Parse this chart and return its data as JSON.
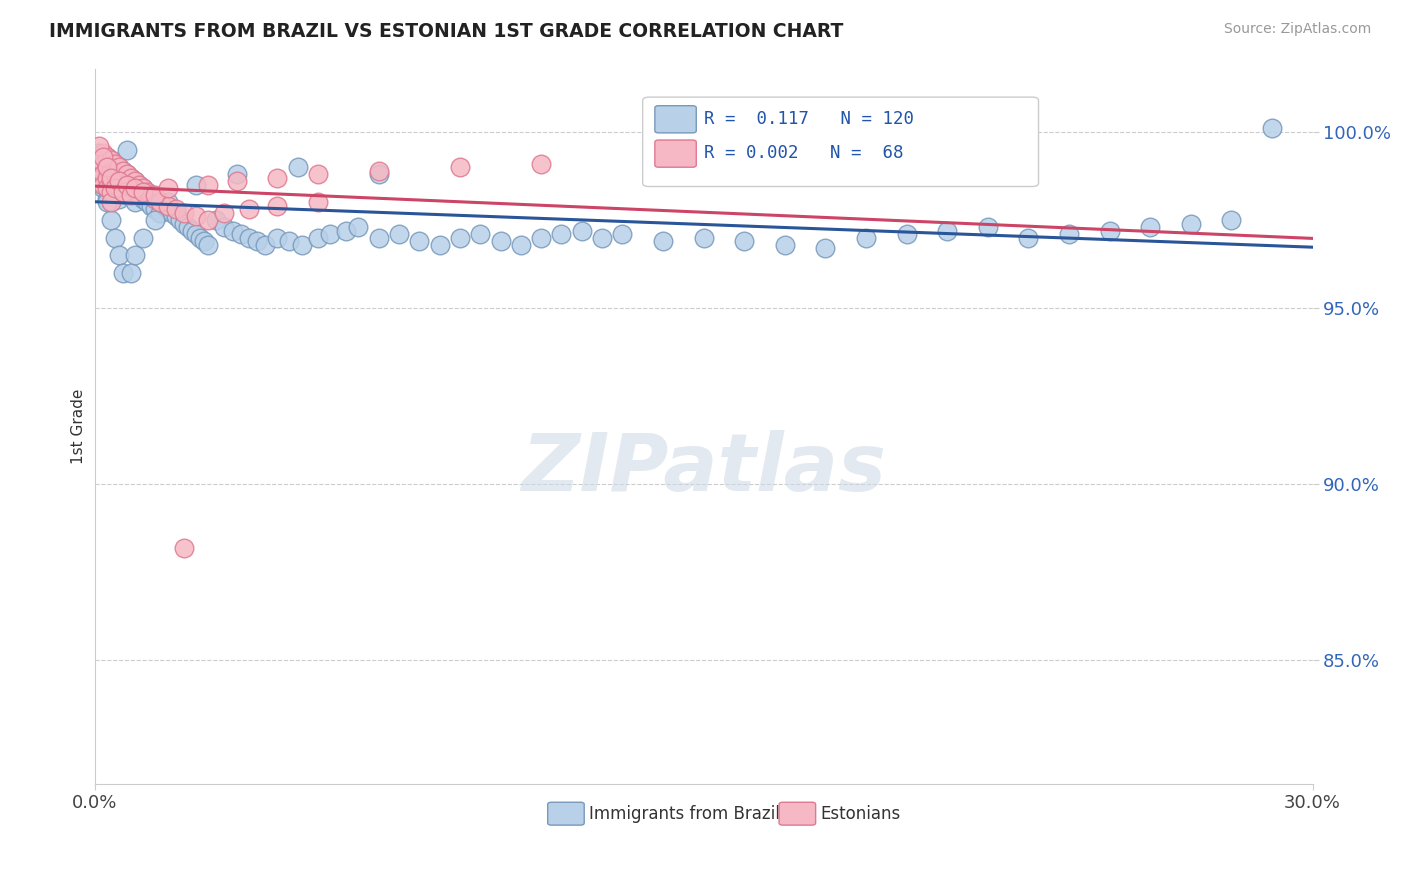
{
  "title": "IMMIGRANTS FROM BRAZIL VS ESTONIAN 1ST GRADE CORRELATION CHART",
  "source_text": "Source: ZipAtlas.com",
  "ylabel": "1st Grade",
  "xlim": [
    0.0,
    0.3
  ],
  "ylim": [
    0.815,
    1.018
  ],
  "xtick_labels": [
    "0.0%",
    "30.0%"
  ],
  "ytick_labels": [
    "85.0%",
    "90.0%",
    "95.0%",
    "100.0%"
  ],
  "ytick_values": [
    0.85,
    0.9,
    0.95,
    1.0
  ],
  "blue_R": 0.117,
  "blue_N": 120,
  "pink_R": 0.002,
  "pink_N": 68,
  "blue_fill": "#b8d0e8",
  "blue_edge": "#7799bb",
  "pink_fill": "#f5b8c4",
  "pink_edge": "#e07890",
  "trend_blue_color": "#2a5599",
  "trend_pink_color": "#cc4466",
  "legend_label_blue": "Immigrants from Brazil",
  "legend_label_pink": "Estonians",
  "blue_scatter_x": [
    0.001,
    0.001,
    0.001,
    0.002,
    0.002,
    0.002,
    0.002,
    0.003,
    0.003,
    0.003,
    0.003,
    0.003,
    0.004,
    0.004,
    0.004,
    0.004,
    0.004,
    0.005,
    0.005,
    0.005,
    0.005,
    0.006,
    0.006,
    0.006,
    0.006,
    0.007,
    0.007,
    0.007,
    0.008,
    0.008,
    0.008,
    0.009,
    0.009,
    0.01,
    0.01,
    0.01,
    0.011,
    0.011,
    0.012,
    0.012,
    0.013,
    0.013,
    0.014,
    0.014,
    0.015,
    0.015,
    0.016,
    0.016,
    0.017,
    0.018,
    0.019,
    0.02,
    0.021,
    0.022,
    0.023,
    0.024,
    0.025,
    0.026,
    0.027,
    0.028,
    0.03,
    0.032,
    0.034,
    0.036,
    0.038,
    0.04,
    0.042,
    0.045,
    0.048,
    0.051,
    0.055,
    0.058,
    0.062,
    0.065,
    0.07,
    0.075,
    0.08,
    0.085,
    0.09,
    0.095,
    0.1,
    0.105,
    0.11,
    0.115,
    0.12,
    0.125,
    0.13,
    0.14,
    0.15,
    0.16,
    0.17,
    0.18,
    0.19,
    0.2,
    0.21,
    0.22,
    0.23,
    0.24,
    0.25,
    0.26,
    0.27,
    0.28,
    0.001,
    0.002,
    0.003,
    0.004,
    0.005,
    0.006,
    0.007,
    0.008,
    0.009,
    0.01,
    0.012,
    0.015,
    0.018,
    0.025,
    0.035,
    0.05,
    0.07,
    0.29
  ],
  "blue_scatter_y": [
    0.994,
    0.99,
    0.987,
    0.993,
    0.99,
    0.987,
    0.984,
    0.993,
    0.99,
    0.987,
    0.984,
    0.981,
    0.992,
    0.989,
    0.986,
    0.983,
    0.98,
    0.991,
    0.988,
    0.985,
    0.982,
    0.99,
    0.987,
    0.984,
    0.981,
    0.989,
    0.986,
    0.983,
    0.988,
    0.985,
    0.982,
    0.987,
    0.984,
    0.986,
    0.983,
    0.98,
    0.985,
    0.982,
    0.984,
    0.981,
    0.983,
    0.98,
    0.982,
    0.979,
    0.981,
    0.978,
    0.98,
    0.977,
    0.979,
    0.978,
    0.977,
    0.976,
    0.975,
    0.974,
    0.973,
    0.972,
    0.971,
    0.97,
    0.969,
    0.968,
    0.975,
    0.973,
    0.972,
    0.971,
    0.97,
    0.969,
    0.968,
    0.97,
    0.969,
    0.968,
    0.97,
    0.971,
    0.972,
    0.973,
    0.97,
    0.971,
    0.969,
    0.968,
    0.97,
    0.971,
    0.969,
    0.968,
    0.97,
    0.971,
    0.972,
    0.97,
    0.971,
    0.969,
    0.97,
    0.969,
    0.968,
    0.967,
    0.97,
    0.971,
    0.972,
    0.973,
    0.97,
    0.971,
    0.972,
    0.973,
    0.974,
    0.975,
    0.99,
    0.985,
    0.98,
    0.975,
    0.97,
    0.965,
    0.96,
    0.995,
    0.96,
    0.965,
    0.97,
    0.975,
    0.98,
    0.985,
    0.988,
    0.99,
    0.988,
    1.001
  ],
  "pink_scatter_x": [
    0.001,
    0.001,
    0.001,
    0.002,
    0.002,
    0.002,
    0.002,
    0.003,
    0.003,
    0.003,
    0.003,
    0.004,
    0.004,
    0.004,
    0.004,
    0.004,
    0.005,
    0.005,
    0.005,
    0.006,
    0.006,
    0.006,
    0.007,
    0.007,
    0.007,
    0.008,
    0.008,
    0.009,
    0.009,
    0.01,
    0.01,
    0.011,
    0.011,
    0.012,
    0.013,
    0.014,
    0.015,
    0.016,
    0.018,
    0.02,
    0.022,
    0.025,
    0.028,
    0.032,
    0.038,
    0.045,
    0.055,
    0.001,
    0.002,
    0.003,
    0.004,
    0.005,
    0.006,
    0.007,
    0.008,
    0.009,
    0.01,
    0.012,
    0.015,
    0.018,
    0.022,
    0.028,
    0.035,
    0.045,
    0.055,
    0.07,
    0.09,
    0.11
  ],
  "pink_scatter_y": [
    0.993,
    0.99,
    0.987,
    0.994,
    0.991,
    0.988,
    0.985,
    0.993,
    0.99,
    0.987,
    0.984,
    0.992,
    0.989,
    0.986,
    0.983,
    0.98,
    0.991,
    0.988,
    0.985,
    0.99,
    0.987,
    0.984,
    0.989,
    0.986,
    0.983,
    0.988,
    0.985,
    0.987,
    0.984,
    0.986,
    0.983,
    0.985,
    0.982,
    0.984,
    0.983,
    0.982,
    0.981,
    0.98,
    0.979,
    0.978,
    0.977,
    0.976,
    0.975,
    0.977,
    0.978,
    0.979,
    0.98,
    0.996,
    0.993,
    0.99,
    0.987,
    0.984,
    0.986,
    0.983,
    0.985,
    0.982,
    0.984,
    0.983,
    0.982,
    0.984,
    0.882,
    0.985,
    0.986,
    0.987,
    0.988,
    0.989,
    0.99,
    0.991
  ]
}
